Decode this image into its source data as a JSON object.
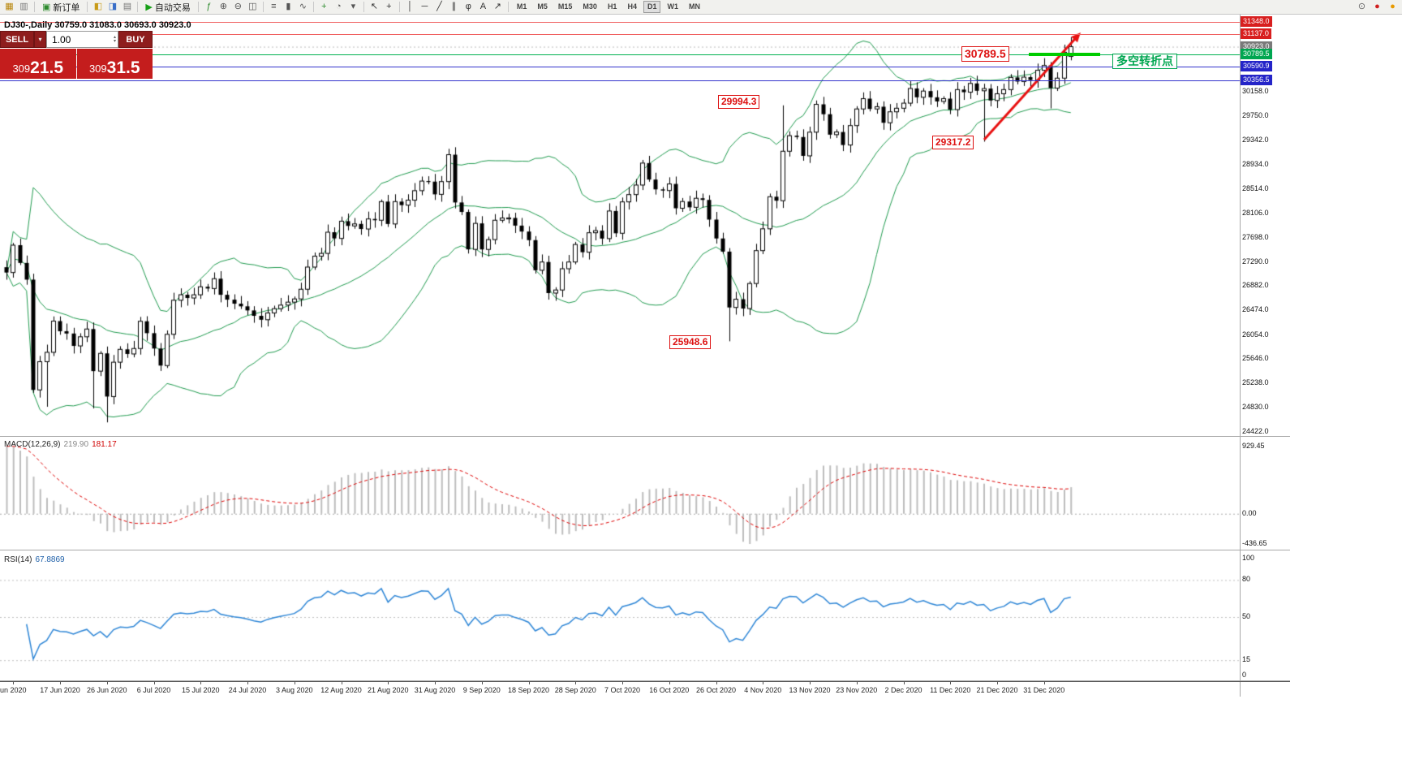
{
  "toolbar": {
    "new_order_label": "新订单",
    "autotrade_label": "自动交易",
    "timeframes": [
      "M1",
      "M5",
      "M15",
      "M30",
      "H1",
      "H4",
      "D1",
      "W1",
      "MN"
    ],
    "active_timeframe": "D1",
    "items": [
      {
        "t": "i",
        "name": "new-chart-icon",
        "g": "▦",
        "c": "#b8860b"
      },
      {
        "t": "i",
        "name": "profiles-icon",
        "g": "▥",
        "c": "#777777"
      },
      {
        "t": "s"
      },
      {
        "t": "b",
        "name": "new-order-button",
        "icon_name": "new-order-icon",
        "g": "▣",
        "c": "#2e8b2e",
        "label_key": "new_order_label"
      },
      {
        "t": "s"
      },
      {
        "t": "i",
        "name": "market-watch-icon",
        "g": "◧",
        "c": "#c89b18"
      },
      {
        "t": "i",
        "name": "data-window-icon",
        "g": "◨",
        "c": "#3a6fc8"
      },
      {
        "t": "i",
        "name": "navigator-icon",
        "g": "▤",
        "c": "#777777"
      },
      {
        "t": "s"
      },
      {
        "t": "b",
        "name": "autotrading-button",
        "icon_name": "autotrading-play-icon",
        "g": "▶",
        "c": "#18a018",
        "label_key": "autotrade_label"
      },
      {
        "t": "s"
      },
      {
        "t": "i",
        "name": "indicators-icon",
        "g": "ƒ",
        "c": "#2e8b2e"
      },
      {
        "t": "i",
        "name": "zoom-in-icon",
        "g": "⊕",
        "c": "#555555"
      },
      {
        "t": "i",
        "name": "zoom-out-icon",
        "g": "⊖",
        "c": "#555555"
      },
      {
        "t": "i",
        "name": "tile-windows-icon",
        "g": "◫",
        "c": "#555555"
      },
      {
        "t": "s"
      },
      {
        "t": "i",
        "name": "bar-chart-icon",
        "g": "≡",
        "c": "#555555"
      },
      {
        "t": "i",
        "name": "candlestick-chart-icon",
        "g": "▮",
        "c": "#555555"
      },
      {
        "t": "i",
        "name": "line-chart-icon",
        "g": "∿",
        "c": "#555555"
      },
      {
        "t": "s"
      },
      {
        "t": "i",
        "name": "new-window-icon",
        "g": "+",
        "c": "#2e8b2e"
      },
      {
        "t": "i",
        "name": "clock-icon",
        "g": "◔",
        "c": "#555555"
      },
      {
        "t": "i",
        "name": "dropdown-icon",
        "g": "▾",
        "c": "#555555"
      },
      {
        "t": "s"
      },
      {
        "t": "i",
        "name": "cursor-icon",
        "g": "↖",
        "c": "#333333"
      },
      {
        "t": "i",
        "name": "crosshair-icon",
        "g": "+",
        "c": "#333333"
      },
      {
        "t": "s"
      },
      {
        "t": "i",
        "name": "vertical-line-icon",
        "g": "│",
        "c": "#333333"
      },
      {
        "t": "i",
        "name": "horizontal-line-icon",
        "g": "─",
        "c": "#333333"
      },
      {
        "t": "i",
        "name": "trendline-icon",
        "g": "╱",
        "c": "#333333"
      },
      {
        "t": "i",
        "name": "channel-icon",
        "g": "∥",
        "c": "#333333"
      },
      {
        "t": "i",
        "name": "fibonacci-icon",
        "g": "φ",
        "c": "#333333"
      },
      {
        "t": "i",
        "name": "text-icon",
        "g": "A",
        "c": "#333333"
      },
      {
        "t": "i",
        "name": "arrows-icon",
        "g": "↗",
        "c": "#333333"
      },
      {
        "t": "s"
      },
      {
        "t": "tf"
      }
    ],
    "right_items": [
      {
        "name": "search-icon",
        "g": "⊙",
        "c": "#666666"
      },
      {
        "name": "alert-red-icon",
        "g": "●",
        "c": "#d02020"
      },
      {
        "name": "alert-orange-icon",
        "g": "●",
        "c": "#e89a00"
      }
    ]
  },
  "chart_header": "DJ30-,Daily  30759.0 31083.0 30693.0 30923.0",
  "trade_panel": {
    "sell_label": "SELL",
    "buy_label": "BUY",
    "volume": "1.00",
    "caret_glyph": "▾",
    "spin_up_glyph": "▴",
    "spin_down_glyph": "▾",
    "sell_price": "30921.5",
    "buy_price": "30931.5",
    "sell_prefix": "309",
    "sell_big": "21.5",
    "buy_prefix": "309",
    "buy_big": "31.5"
  },
  "annotations": {
    "res": "30789.5",
    "high_nov": "29994.3",
    "low_dec": "29317.2",
    "low_oct": "25948.6",
    "turning_point": "多空转折点"
  },
  "resistance_segment": {
    "price": 30789.5
  },
  "hlines": [
    {
      "price": 31348.0,
      "color": "#f06060",
      "width": 1
    },
    {
      "price": 31137.0,
      "color": "#f06060",
      "width": 1
    },
    {
      "price": 30789.5,
      "color": "#00b050",
      "width": 1
    },
    {
      "price": 30590.9,
      "color": "#3333cc",
      "width": 1
    },
    {
      "price": 30356.5,
      "color": "#3333cc",
      "width": 1
    }
  ],
  "price_axis": {
    "tags": [
      {
        "value": "31348.0",
        "price": 31348.0,
        "type": "tag-red"
      },
      {
        "value": "31137.0",
        "price": 31137.0,
        "type": "tag-red"
      },
      {
        "value": "30923.0",
        "price": 30923.0,
        "type": "tag-gray"
      },
      {
        "value": "30789.5",
        "price": 30789.5,
        "type": "tag-green"
      },
      {
        "value": "30590.9",
        "price": 30590.9,
        "type": "tag-blue"
      },
      {
        "value": "30356.5",
        "price": 30356.5,
        "type": "tag-blue"
      }
    ],
    "scale": [
      "30158.0",
      "29750.0",
      "29342.0",
      "28934.0",
      "28514.0",
      "28106.0",
      "27698.0",
      "27290.0",
      "26882.0",
      "26474.0",
      "26054.0",
      "25646.0",
      "25238.0",
      "24830.0",
      "24422.0"
    ]
  },
  "macd": {
    "label": "MACD(12,26,9)",
    "value_main": "219.90",
    "value_signal": "181.17",
    "axis": [
      "929.45",
      "0.00",
      "-436.65"
    ],
    "params": [
      12,
      26,
      9
    ]
  },
  "rsi": {
    "label": "RSI(14)",
    "value": "67.8869",
    "axis": [
      "100",
      "80",
      "50",
      "15",
      "0"
    ],
    "levels": [
      80,
      50,
      15
    ],
    "period": 14
  },
  "time_axis": [
    "un 2020",
    "17 Jun 2020",
    "26 Jun 2020",
    "6 Jul 2020",
    "15 Jul 2020",
    "24 Jul 2020",
    "3 Aug 2020",
    "12 Aug 2020",
    "21 Aug 2020",
    "31 Aug 2020",
    "9 Sep 2020",
    "18 Sep 2020",
    "28 Sep 2020",
    "7 Oct 2020",
    "16 Oct 2020",
    "26 Oct 2020",
    "4 Nov 2020",
    "13 Nov 2020",
    "23 Nov 2020",
    "2 Dec 2020",
    "11 Dec 2020",
    "21 Dec 2020",
    "31 Dec 2020"
  ],
  "chart_data": {
    "type": "candlestick",
    "symbol": "DJ30-",
    "period": "Daily",
    "title": "DJ30-,Daily",
    "ohlc_last": {
      "open": 30759.0,
      "high": 31083.0,
      "low": 30693.0,
      "close": 30923.0
    },
    "price_range": [
      24350,
      31465
    ],
    "indicators": [
      "Bollinger Bands(20,2)",
      "MACD(12,26,9)",
      "RSI(14)"
    ],
    "key_levels": {
      "resistance1": 31348.0,
      "resistance2": 31137.0,
      "pivot_green": 30789.5,
      "support1": 30590.9,
      "support2": 30356.5,
      "swing_high_nov": 29994.3,
      "swing_low_dec": 29317.2,
      "swing_low_oct": 25948.6
    },
    "closes": [
      27110,
      27572,
      27272,
      26990,
      25128,
      25605,
      25763,
      26290,
      26119,
      26080,
      25871,
      26025,
      26156,
      25445,
      25745,
      25016,
      25596,
      25813,
      25735,
      25827,
      26287,
      26086,
      25827,
      25539,
      26067,
      26642,
      26735,
      26680,
      26734,
      26870,
      26840,
      27006,
      26734,
      26652,
      26584,
      26539,
      26470,
      26379,
      26313,
      26428,
      26500,
      26560,
      26610,
      26664,
      26828,
      27202,
      27386,
      27433,
      27791,
      27686,
      27977,
      27897,
      27931,
      27845,
      28015,
      27993,
      28308,
      27930,
      28308,
      28248,
      28332,
      28492,
      28654,
      28645,
      28430,
      28645,
      29100,
      28293,
      28133,
      27501,
      27940,
      27500,
      27666,
      27993,
      28031,
      28032,
      27902,
      27802,
      27657,
      27148,
      27288,
      26763,
      26815,
      27174,
      27288,
      27584,
      27453,
      27782,
      27817,
      27683,
      28149,
      27773,
      28303,
      28426,
      28587,
      28958,
      28680,
      28514,
      28494,
      28606,
      28195,
      28309,
      28211,
      28364,
      28336,
      28004,
      27685,
      27463,
      26520,
      26659,
      26502,
      26925,
      27480,
      27848,
      28390,
      28323,
      29158,
      29421,
      29398,
      29080,
      29480,
      29950,
      29783,
      29438,
      29483,
      29263,
      29591,
      29872,
      30046,
      29872,
      29910,
      29639,
      29824,
      29884,
      29970,
      30218,
      30069,
      30174,
      30069,
      29999,
      30046,
      29861,
      30199,
      30155,
      30303,
      30179,
      30216,
      30015,
      30129,
      30199,
      30404,
      30335,
      30409,
      30360,
      30525,
      30606,
      30223,
      30392,
      30829,
      30923
    ],
    "overrides": {
      "4": {
        "high": 27090,
        "low": 25078
      },
      "6": {
        "low": 24843
      },
      "13": {
        "low": 24815
      },
      "15": {
        "low": 24580
      },
      "66": {
        "high": 29199
      },
      "108": {
        "low": 25949
      },
      "116": {
        "high": 29933
      },
      "146": {
        "low": 29320
      },
      "156": {
        "low": 29881
      },
      "159": {
        "open": 30759,
        "high": 31083,
        "low": 30693
      }
    }
  }
}
